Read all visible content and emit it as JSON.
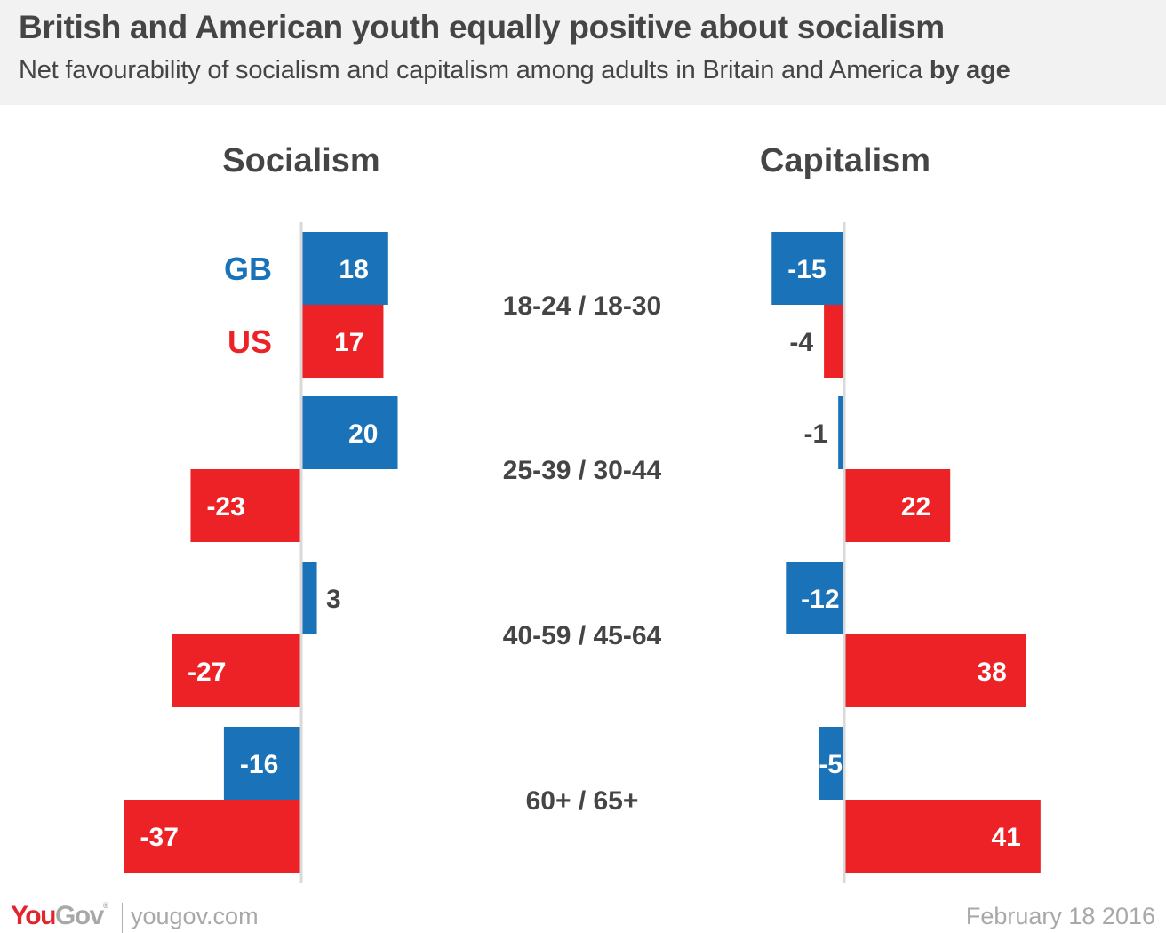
{
  "header": {
    "title": "British and American youth equally positive about socialism",
    "subtitle_main": "Net favourability of socialism and capitalism among adults in Britain and America",
    "subtitle_bold": "by age"
  },
  "footer": {
    "logo_you": "You",
    "logo_gov": "Gov",
    "logo_mark": "®",
    "url": "yougov.com",
    "date": "February 18 2016"
  },
  "colors": {
    "gb": "#1a72b9",
    "us": "#ec2227",
    "axis": "#d9d9d9",
    "text": "#454545"
  },
  "chart_data": {
    "type": "bar",
    "orientation": "horizontal-diverging",
    "title": "British and American youth equally positive about socialism",
    "subtitle": "Net favourability of socialism and capitalism among adults in Britain and America by age",
    "categories": [
      "18-24 / 18-30",
      "25-39 / 30-44",
      "40-59 / 45-64",
      "60+ / 65+"
    ],
    "legend": [
      {
        "name": "GB",
        "color": "#1a72b9"
      },
      {
        "name": "US",
        "color": "#ec2227"
      }
    ],
    "legend_placement": "inline-left-of-first-group",
    "panels": [
      {
        "title": "Socialism",
        "series": [
          {
            "name": "GB",
            "values": [
              18,
              20,
              3,
              -16
            ]
          },
          {
            "name": "US",
            "values": [
              17,
              -23,
              -27,
              -37
            ]
          }
        ]
      },
      {
        "title": "Capitalism",
        "series": [
          {
            "name": "GB",
            "values": [
              -15,
              -1,
              -12,
              -5
            ]
          },
          {
            "name": "US",
            "values": [
              -4,
              22,
              38,
              41
            ]
          }
        ]
      }
    ],
    "xlabel": "",
    "ylabel": "",
    "grid": false
  }
}
